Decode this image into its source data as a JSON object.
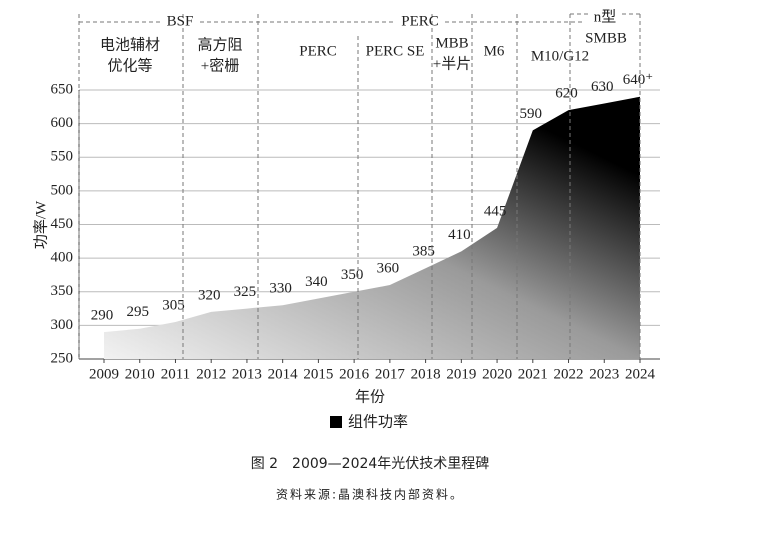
{
  "chart_data": {
    "type": "area",
    "categories": [
      "2009",
      "2010",
      "2011",
      "2012",
      "2013",
      "2014",
      "2015",
      "2016",
      "2017",
      "2018",
      "2019",
      "2020",
      "2021",
      "2022",
      "2023",
      "2024"
    ],
    "series": [
      {
        "name": "组件功率",
        "color": "#000000",
        "values": [
          290,
          295,
          305,
          320,
          325,
          330,
          340,
          350,
          360,
          385,
          410,
          445,
          590,
          620,
          630,
          640
        ],
        "value_labels": [
          "290",
          "295",
          "305",
          "320",
          "325",
          "330",
          "340",
          "350",
          "360",
          "385",
          "410",
          "445",
          "590",
          "620",
          "630",
          "640⁺"
        ]
      }
    ],
    "ylim": [
      250,
      650
    ],
    "yticks": [
      250,
      300,
      350,
      400,
      450,
      500,
      550,
      600,
      650
    ],
    "grid": true,
    "xlabel": "年份",
    "ylabel": "功率/W",
    "groups": [
      {
        "label": "BSF",
        "items": [
          [
            "电池辅材",
            "优化等"
          ],
          [
            "高方阻",
            "+密栅"
          ]
        ]
      },
      {
        "label": "PERC",
        "items": [
          [
            "PERC"
          ],
          [
            "PERC SE"
          ],
          [
            "MBB",
            "+半片"
          ],
          [
            "M6"
          ],
          [
            "M10/G12"
          ]
        ]
      },
      {
        "label": "n型",
        "items": [
          [
            "SMBB"
          ]
        ]
      }
    ],
    "caption": "图 2　2009—2024年光伏技术里程碑",
    "source": "资料来源:晶澳科技内部资料。"
  }
}
